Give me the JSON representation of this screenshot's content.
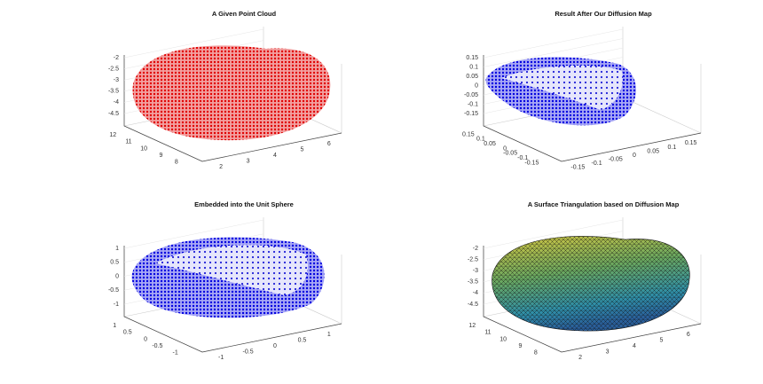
{
  "panels": [
    {
      "title": "A Given Point Cloud",
      "z_ticks": [
        "-2",
        "-2.5",
        "-3",
        "-3.5",
        "-4",
        "-4.5"
      ],
      "left_ticks": [
        "12",
        "11",
        "10",
        "9",
        "8"
      ],
      "right_ticks": [
        "2",
        "3",
        "4",
        "5",
        "6"
      ]
    },
    {
      "title": "Result After Our Diffusion Map",
      "z_ticks": [
        "0.15",
        "0.1",
        "0.05",
        "0",
        "-0.05",
        "-0.1",
        "-0.15"
      ],
      "left_ticks": [
        "0.15",
        "0.1",
        "0.05",
        "0",
        "-0.05",
        "-0.1",
        "-0.15"
      ],
      "right_ticks": [
        "-0.15",
        "-0.1",
        "-0.05",
        "0",
        "0.05",
        "0.1",
        "0.15"
      ]
    },
    {
      "title": "Embedded into the Unit Sphere",
      "z_ticks": [
        "1",
        "0.5",
        "0",
        "-0.5",
        "-1"
      ],
      "left_ticks": [
        "1",
        "0.5",
        "0",
        "-0.5",
        "-1"
      ],
      "right_ticks": [
        "-1",
        "-0.5",
        "0",
        "0.5",
        "1"
      ]
    },
    {
      "title": "A Surface Triangulation based on Diffusion Map",
      "z_ticks": [
        "-2",
        "-2.5",
        "-3",
        "-3.5",
        "-4",
        "-4.5"
      ],
      "left_ticks": [
        "12",
        "11",
        "10",
        "9",
        "8"
      ],
      "right_ticks": [
        "2",
        "3",
        "4",
        "5",
        "6"
      ]
    }
  ]
}
